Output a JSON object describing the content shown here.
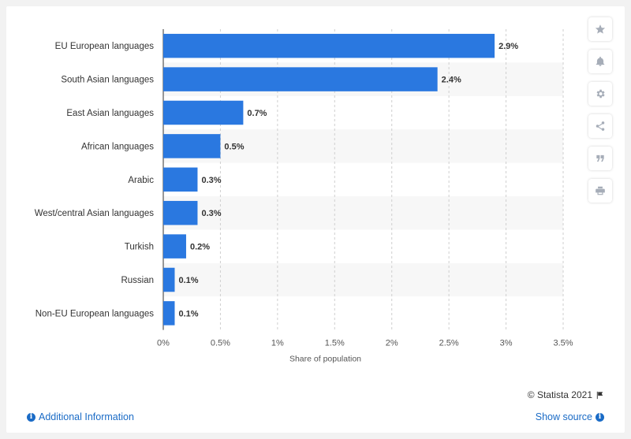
{
  "chart_data": {
    "type": "bar",
    "orientation": "horizontal",
    "categories": [
      "EU European languages",
      "South Asian languages",
      "East Asian languages",
      "African languages",
      "Arabic",
      "West/central Asian languages",
      "Turkish",
      "Russian",
      "Non-EU European languages"
    ],
    "values": [
      2.9,
      2.4,
      0.7,
      0.5,
      0.3,
      0.3,
      0.2,
      0.1,
      0.1
    ],
    "value_labels": [
      "2.9%",
      "2.4%",
      "0.7%",
      "0.5%",
      "0.3%",
      "0.3%",
      "0.2%",
      "0.1%",
      "0.1%"
    ],
    "xlabel": "Share of population",
    "xlim": [
      0,
      3.5
    ],
    "ticks": [
      "0%",
      "0.5%",
      "1%",
      "1.5%",
      "2%",
      "2.5%",
      "3%",
      "3.5%"
    ],
    "bar_color": "#2a78e0",
    "grid": "vertical dashed",
    "alternating_row_shading": true
  },
  "footer": {
    "credit": "© Statista 2021",
    "additional_info": "Additional Information",
    "show_source": "Show source"
  },
  "toolbar": {
    "icons": [
      "star-icon",
      "bell-icon",
      "gear-icon",
      "share-icon",
      "quote-icon",
      "print-icon"
    ]
  }
}
